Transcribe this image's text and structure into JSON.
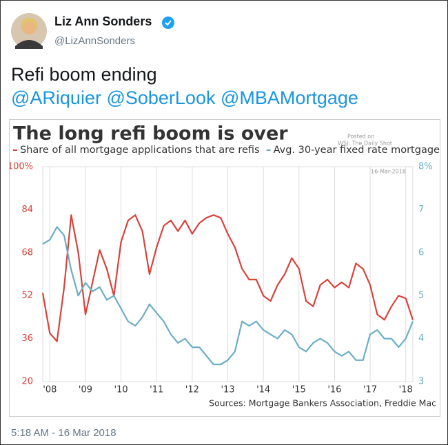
{
  "tweet": {
    "name": "Liz Ann Sonders",
    "handle": "@LizAnnSonders",
    "text": "Refi boom ending",
    "mentions": "@ARiquier @SoberLook @MBAMortgage",
    "timestamp": "5:18 AM - 16 Mar 2018"
  },
  "chart_data": {
    "type": "line",
    "title": "The long refi boom is over",
    "credit": [
      "Posted on",
      "WSJ: The Daily Shot",
      "16-Mar-2018"
    ],
    "source": "Sources: Mortgage Bankers Association, Freddie Mac",
    "x": [
      2007.8,
      2008,
      2008.2,
      2008.4,
      2008.6,
      2008.8,
      2009,
      2009.2,
      2009.4,
      2009.6,
      2009.8,
      2010,
      2010.2,
      2010.4,
      2010.6,
      2010.8,
      2011,
      2011.2,
      2011.4,
      2011.6,
      2011.8,
      2012,
      2012.2,
      2012.4,
      2012.6,
      2012.8,
      2013,
      2013.2,
      2013.4,
      2013.6,
      2013.8,
      2014,
      2014.2,
      2014.4,
      2014.6,
      2014.8,
      2015,
      2015.2,
      2015.4,
      2015.6,
      2015.8,
      2016,
      2016.2,
      2016.4,
      2016.6,
      2016.8,
      2017,
      2017.2,
      2017.4,
      2017.6,
      2017.8,
      2018,
      2018.2
    ],
    "xlim": [
      2007.8,
      2018.2
    ],
    "xticks": [
      {
        "value": 2008,
        "label": "'08"
      },
      {
        "value": 2009,
        "label": "'09"
      },
      {
        "value": 2010,
        "label": "'10"
      },
      {
        "value": 2011,
        "label": "'11"
      },
      {
        "value": 2012,
        "label": "'12"
      },
      {
        "value": 2013,
        "label": "'13"
      },
      {
        "value": 2014,
        "label": "'14"
      },
      {
        "value": 2015,
        "label": "'15"
      },
      {
        "value": 2016,
        "label": "'16"
      },
      {
        "value": 2017,
        "label": "'17"
      },
      {
        "value": 2018,
        "label": "'18"
      }
    ],
    "ylim": [
      20,
      100
    ],
    "yticks": [
      20,
      36,
      52,
      68,
      84,
      {
        "value": 100,
        "label": "100%"
      }
    ],
    "y2lim": [
      3,
      8
    ],
    "y2ticks": [
      3,
      4,
      5,
      6,
      7,
      {
        "value": 8,
        "label": "8%"
      }
    ],
    "grid": "x",
    "series": [
      {
        "name": "Share of all mortgage applications that are refis",
        "color": "#d9413b",
        "values": [
          53,
          38,
          35,
          55,
          82,
          68,
          45,
          57,
          69,
          62,
          52,
          72,
          80,
          82,
          76,
          60,
          70,
          78,
          80,
          76,
          80,
          75,
          79,
          81,
          82,
          81,
          75,
          70,
          62,
          58,
          58,
          52,
          50,
          56,
          60,
          66,
          62,
          50,
          48,
          56,
          58,
          55,
          57,
          55,
          64,
          62,
          56,
          45,
          43,
          48,
          52,
          51,
          43
        ]
      },
      {
        "name": "Avg. 30-year fixed rate mortgage",
        "color": "#6badc4",
        "axis": "y2",
        "values": [
          6.2,
          6.3,
          6.6,
          6.4,
          5.6,
          5.0,
          5.3,
          5.1,
          5.2,
          4.9,
          5.0,
          4.7,
          4.4,
          4.3,
          4.5,
          4.8,
          4.6,
          4.4,
          4.1,
          3.9,
          4.0,
          3.8,
          3.8,
          3.6,
          3.4,
          3.4,
          3.5,
          3.7,
          4.4,
          4.3,
          4.4,
          4.2,
          4.1,
          4.0,
          4.2,
          4.1,
          3.8,
          3.7,
          3.9,
          4.0,
          3.9,
          3.7,
          3.6,
          3.7,
          3.5,
          3.5,
          4.1,
          4.2,
          4.0,
          4.0,
          3.8,
          4.0,
          4.4
        ]
      }
    ]
  }
}
